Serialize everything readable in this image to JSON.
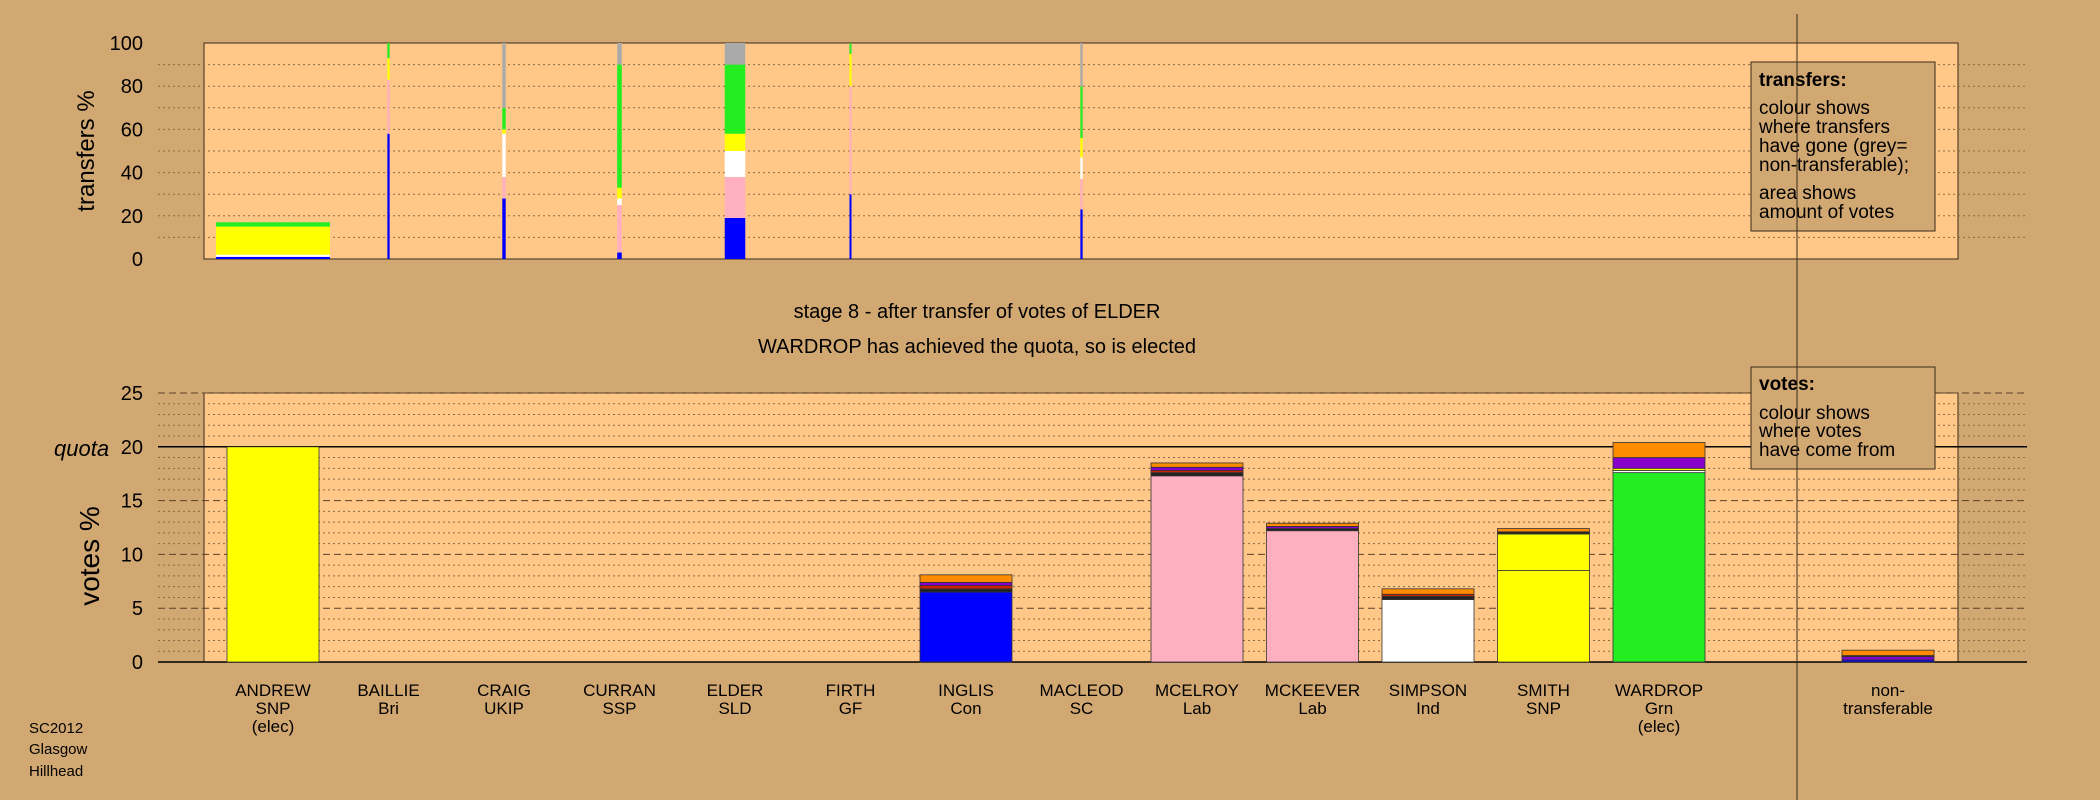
{
  "colors": {
    "background": "#D2A872",
    "panel": "#FFC889",
    "legend_box": "#D2A872",
    "non_transferable": "#AAAAAA",
    "snp": "#FFFF00",
    "lab": "#FFB0C0",
    "con": "#0000FF",
    "grn": "#22EE22",
    "ind": "#FFFFFF",
    "sld": "#FF8C00",
    "ukip": "#8800CC",
    "ssp": "#CC2200",
    "other": "#222222"
  },
  "top_panel": {
    "ylabel": "transfers %",
    "yticks": [
      "0",
      "20",
      "40",
      "60",
      "80",
      "100"
    ],
    "legend": {
      "title": "transfers:",
      "lines1": [
        "colour shows",
        "where transfers",
        "have gone (grey=",
        "non-transferable);"
      ],
      "lines2": [
        "area shows",
        "amount of votes"
      ]
    }
  },
  "headline": {
    "line1": "stage 8 - after transfer of votes of ELDER",
    "line2": "WARDROP has achieved the quota, so is elected"
  },
  "bottom_panel": {
    "ylabel": "votes %",
    "quota_label": "quota",
    "yticks": [
      "0",
      "5",
      "10",
      "15",
      "20",
      "25"
    ],
    "legend": {
      "title": "votes:",
      "lines": [
        "colour shows",
        "where votes",
        "have come from"
      ]
    }
  },
  "footer": {
    "lines": [
      "SC2012",
      "Glasgow",
      "Hillhead"
    ]
  },
  "chart_data": [
    {
      "type": "bar",
      "panel": "transfers",
      "ylabel": "transfers %",
      "ylim": [
        0,
        100
      ],
      "description": "Transfer bars: width proportional to amount of votes transferred, stacked colours show destination",
      "bars": [
        {
          "candidate": "ANDREW",
          "width_rel": 1.0,
          "stacks": [
            [
              "con",
              1
            ],
            [
              "ind",
              1
            ],
            [
              "snp",
              13
            ],
            [
              "grn",
              2
            ]
          ]
        },
        {
          "candidate": "BAILLIE",
          "width_rel": 0.02,
          "stacks": [
            [
              "con",
              58
            ],
            [
              "lab",
              25
            ],
            [
              "snp",
              10
            ],
            [
              "grn",
              7
            ]
          ]
        },
        {
          "candidate": "CRAIG",
          "width_rel": 0.03,
          "stacks": [
            [
              "con",
              28
            ],
            [
              "lab",
              10
            ],
            [
              "ind",
              20
            ],
            [
              "snp",
              2
            ],
            [
              "grn",
              10
            ],
            [
              "non_transferable",
              30
            ]
          ]
        },
        {
          "candidate": "CURRAN",
          "width_rel": 0.04,
          "stacks": [
            [
              "con",
              3
            ],
            [
              "lab",
              22
            ],
            [
              "ind",
              3
            ],
            [
              "snp",
              5
            ],
            [
              "grn",
              57
            ],
            [
              "non_transferable",
              10
            ]
          ]
        },
        {
          "candidate": "ELDER",
          "width_rel": 0.18,
          "stacks": [
            [
              "con",
              19
            ],
            [
              "lab",
              19
            ],
            [
              "ind",
              12
            ],
            [
              "snp",
              8
            ],
            [
              "grn",
              32
            ],
            [
              "non_transferable",
              10
            ]
          ]
        },
        {
          "candidate": "FIRTH",
          "width_rel": 0.01,
          "stacks": [
            [
              "con",
              30
            ],
            [
              "lab",
              50
            ],
            [
              "snp",
              15
            ],
            [
              "grn",
              5
            ]
          ]
        },
        {
          "candidate": "MACLEOD",
          "width_rel": 0.02,
          "stacks": [
            [
              "con",
              23
            ],
            [
              "lab",
              14
            ],
            [
              "ind",
              10
            ],
            [
              "snp",
              9
            ],
            [
              "grn",
              24
            ],
            [
              "non_transferable",
              20
            ]
          ]
        }
      ]
    },
    {
      "type": "bar",
      "panel": "votes",
      "ylabel": "votes %",
      "ylim": [
        0,
        25
      ],
      "quota": 20,
      "categories": [
        "ANDREW\nSNP\n(elec)",
        "BAILLIE\nBri",
        "CRAIG\nUKIP",
        "CURRAN\nSSP",
        "ELDER\nSLD",
        "FIRTH\nGF",
        "INGLIS\nCon",
        "MACLEOD\nSC",
        "MCELROY\nLab",
        "MCKEEVER\nLab",
        "SIMPSON\nInd",
        "SMITH\nSNP",
        "WARDROP\nGrn\n(elec)",
        "non-\ntransferable"
      ],
      "candidates": [
        {
          "name": "ANDREW",
          "lines": [
            "ANDREW",
            "SNP",
            "(elec)"
          ],
          "stacks": [
            [
              "snp",
              20.0
            ]
          ]
        },
        {
          "name": "BAILLIE",
          "lines": [
            "BAILLIE",
            "Bri"
          ],
          "stacks": []
        },
        {
          "name": "CRAIG",
          "lines": [
            "CRAIG",
            "UKIP"
          ],
          "stacks": []
        },
        {
          "name": "CURRAN",
          "lines": [
            "CURRAN",
            "SSP"
          ],
          "stacks": []
        },
        {
          "name": "ELDER",
          "lines": [
            "ELDER",
            "SLD"
          ],
          "stacks": []
        },
        {
          "name": "FIRTH",
          "lines": [
            "FIRTH",
            "GF"
          ],
          "stacks": []
        },
        {
          "name": "INGLIS",
          "lines": [
            "INGLIS",
            "Con"
          ],
          "stacks": [
            [
              "con",
              6.5
            ],
            [
              "other",
              0.3
            ],
            [
              "ssp",
              0.3
            ],
            [
              "ukip",
              0.3
            ],
            [
              "sld",
              0.7
            ]
          ]
        },
        {
          "name": "MACLEOD",
          "lines": [
            "MACLEOD",
            "SC"
          ],
          "stacks": []
        },
        {
          "name": "MCELROY",
          "lines": [
            "MCELROY",
            "Lab"
          ],
          "stacks": [
            [
              "lab",
              17.3
            ],
            [
              "other",
              0.3
            ],
            [
              "ssp",
              0.2
            ],
            [
              "ukip",
              0.3
            ],
            [
              "sld",
              0.4
            ]
          ]
        },
        {
          "name": "MCKEEVER",
          "lines": [
            "MCKEEVER",
            "Lab"
          ],
          "stacks": [
            [
              "lab",
              12.2
            ],
            [
              "other",
              0.2
            ],
            [
              "ukip",
              0.2
            ],
            [
              "sld",
              0.3
            ]
          ]
        },
        {
          "name": "SIMPSON",
          "lines": [
            "SIMPSON",
            "Ind"
          ],
          "stacks": [
            [
              "ind",
              5.8
            ],
            [
              "other",
              0.3
            ],
            [
              "ssp",
              0.2
            ],
            [
              "sld",
              0.5
            ]
          ]
        },
        {
          "name": "SMITH",
          "lines": [
            "SMITH",
            "SNP"
          ],
          "stacks": [
            [
              "snp",
              8.5
            ],
            [
              "snp",
              3.4
            ],
            [
              "other",
              0.2
            ],
            [
              "sld",
              0.3
            ]
          ]
        },
        {
          "name": "WARDROP",
          "lines": [
            "WARDROP",
            "Grn",
            "(elec)"
          ],
          "stacks": [
            [
              "grn",
              17.6
            ],
            [
              "ind",
              0.2
            ],
            [
              "snp",
              0.2
            ],
            [
              "ukip",
              1.0
            ],
            [
              "sld",
              1.4
            ]
          ]
        },
        {
          "name": "non-transferable",
          "lines": [
            "non-",
            "transferable"
          ],
          "stacks": [
            [
              "con",
              0.2
            ],
            [
              "ukip",
              0.3
            ],
            [
              "other",
              0.1
            ],
            [
              "sld",
              0.5
            ]
          ]
        }
      ]
    }
  ]
}
